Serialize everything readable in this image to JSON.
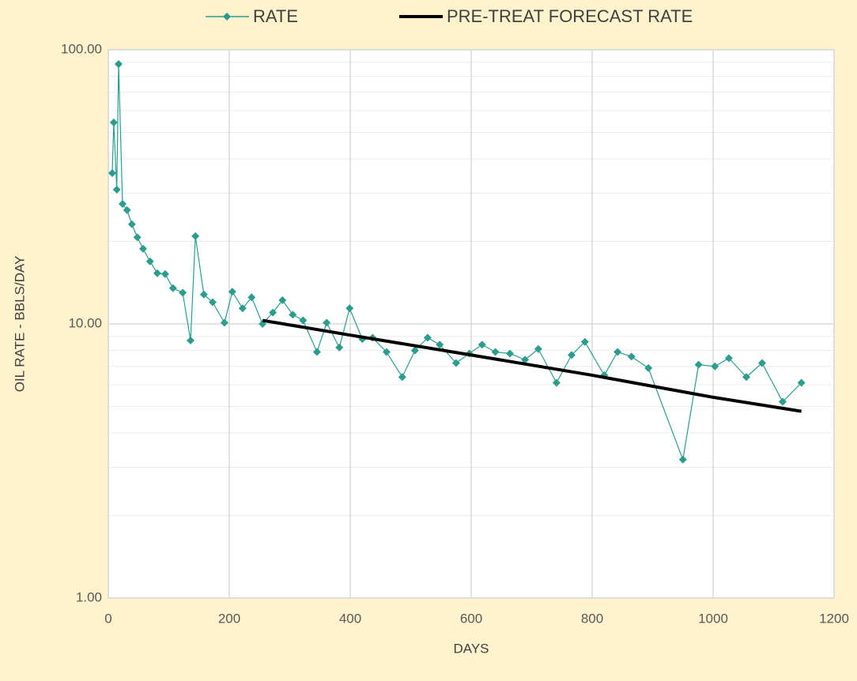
{
  "chart_data": {
    "type": "line",
    "x_label": "DAYS",
    "y_label": "OIL RATE - BBLS/DAY",
    "log_y": true,
    "grid": true,
    "minor_grid": true,
    "legend": "top",
    "xlim": [
      0,
      1200
    ],
    "xticks": [
      0,
      200,
      400,
      600,
      800,
      1000,
      1200
    ],
    "ylim": [
      1,
      100
    ],
    "yticks": [
      {
        "value": 1,
        "label": "1.00"
      },
      {
        "value": 10,
        "label": "10.00"
      },
      {
        "value": 100,
        "label": "100.00"
      }
    ],
    "series": [
      {
        "name": "RATE",
        "color": "#2a9d8f",
        "marker": "diamond",
        "x": [
          6.5,
          9,
          14,
          17,
          23.5,
          31,
          39,
          48,
          57.5,
          69,
          81,
          94,
          107,
          123,
          136,
          144,
          158,
          172.5,
          192,
          205,
          222,
          237,
          255,
          272,
          288,
          305,
          322,
          345,
          361,
          382,
          399,
          420,
          437,
          460,
          486,
          507,
          528,
          548,
          575,
          597,
          618,
          640,
          664,
          689,
          711,
          741,
          766,
          788,
          820,
          842,
          865,
          893,
          950,
          976,
          1003,
          1026,
          1055,
          1081,
          1115,
          1146
        ],
        "values": [
          35.5,
          54.3,
          30.9,
          88.7,
          27.4,
          26.0,
          23.1,
          20.7,
          18.8,
          16.9,
          15.3,
          15.2,
          13.5,
          13.0,
          8.7,
          20.9,
          12.8,
          12.0,
          10.1,
          13.1,
          11.4,
          12.5,
          10.0,
          11.0,
          12.2,
          10.8,
          10.3,
          7.9,
          10.1,
          8.2,
          11.4,
          8.8,
          8.9,
          7.9,
          6.4,
          8.0,
          8.9,
          8.4,
          7.2,
          7.8,
          8.4,
          7.9,
          7.8,
          7.4,
          8.1,
          6.1,
          7.7,
          8.6,
          6.5,
          7.9,
          7.6,
          6.9,
          3.2,
          7.1,
          7.0,
          7.5,
          6.4,
          7.2,
          5.2,
          6.1
        ]
      },
      {
        "name": "PRE-TREAT FORECAST RATE",
        "color": "#000000",
        "x": [
          255,
          400,
          600,
          800,
          1000,
          1146
        ],
        "values": [
          10.3,
          9.1,
          7.7,
          6.5,
          5.4,
          4.8
        ]
      }
    ]
  }
}
